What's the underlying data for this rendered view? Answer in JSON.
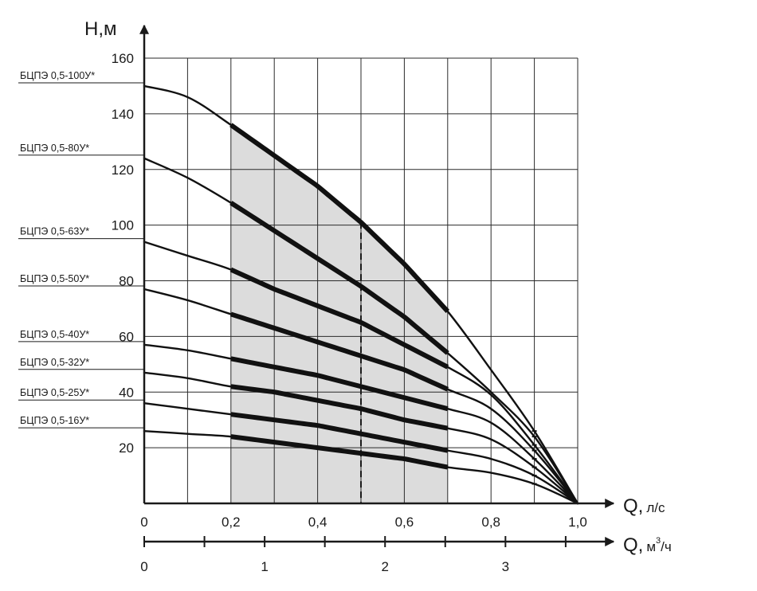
{
  "chart_data": {
    "type": "line",
    "title": "",
    "y_axis": {
      "label": "Н,м",
      "ticks": [
        20,
        40,
        60,
        80,
        100,
        120,
        140,
        160
      ],
      "ylim": [
        0,
        160
      ],
      "gridlines_every": 20
    },
    "x_axis": {
      "label": "Q,",
      "unit": "л/с",
      "ticks": [
        0,
        0.2,
        0.4,
        0.6,
        0.8,
        1.0
      ],
      "tick_labels": [
        "0",
        "0,2",
        "0,4",
        "0,6",
        "0,8",
        "1,0"
      ],
      "xlim": [
        0,
        1.0
      ],
      "gridlines_every": 0.1
    },
    "x_axis_secondary": {
      "label": "Q,",
      "unit_prefix": "м",
      "unit_sup": "3",
      "unit_suffix": "/ч",
      "ticks": [
        0,
        1,
        2,
        3
      ],
      "tick_labels": [
        "0",
        "1",
        "2",
        "3"
      ],
      "minor_ticks": [
        0.5,
        1.5,
        2.5,
        3.5
      ],
      "conversion_from_primary": 3.6
    },
    "grid": true,
    "working_zone": {
      "q_min": 0.2,
      "q_max": 0.7,
      "fill": "#dcdcdc"
    },
    "nominal_flow": {
      "q": 0.5,
      "style": "dashed"
    },
    "series": [
      {
        "name": "БЦПЭ 0,5-100У*",
        "x": [
          0,
          0.1,
          0.2,
          0.3,
          0.4,
          0.5,
          0.6,
          0.7,
          0.8,
          0.9,
          1.0
        ],
        "y": [
          150,
          146,
          136,
          125,
          114,
          101,
          86,
          69,
          48,
          26,
          0
        ]
      },
      {
        "name": "БЦПЭ 0,5-80У*",
        "x": [
          0,
          0.1,
          0.2,
          0.3,
          0.4,
          0.5,
          0.6,
          0.7,
          0.8,
          0.9,
          1.0
        ],
        "y": [
          124,
          117,
          108,
          98,
          88,
          78,
          67,
          54,
          40,
          24,
          0
        ]
      },
      {
        "name": "БЦПЭ 0,5-63У*",
        "x": [
          0,
          0.1,
          0.2,
          0.3,
          0.4,
          0.5,
          0.6,
          0.7,
          0.8,
          0.9,
          1.0
        ],
        "y": [
          94,
          89,
          84,
          77,
          71,
          65,
          57,
          49,
          39,
          21,
          0
        ]
      },
      {
        "name": "БЦПЭ 0,5-50У*",
        "x": [
          0,
          0.1,
          0.2,
          0.3,
          0.4,
          0.5,
          0.6,
          0.7,
          0.8,
          0.9,
          1.0
        ],
        "y": [
          77,
          73,
          68,
          63,
          58,
          53,
          48,
          41,
          34,
          19,
          0
        ]
      },
      {
        "name": "БЦПЭ 0,5-40У*",
        "x": [
          0,
          0.1,
          0.2,
          0.3,
          0.4,
          0.5,
          0.6,
          0.7,
          0.8,
          0.9,
          1.0
        ],
        "y": [
          57,
          55,
          52,
          49,
          46,
          42,
          38,
          34,
          29,
          16,
          0
        ]
      },
      {
        "name": "БЦПЭ 0,5-32У*",
        "x": [
          0,
          0.1,
          0.2,
          0.3,
          0.4,
          0.5,
          0.6,
          0.7,
          0.8,
          0.9,
          1.0
        ],
        "y": [
          47,
          45,
          42,
          40,
          37,
          34,
          30,
          27,
          23,
          13,
          0
        ]
      },
      {
        "name": "БЦПЭ 0,5-25У*",
        "x": [
          0,
          0.1,
          0.2,
          0.3,
          0.4,
          0.5,
          0.6,
          0.7,
          0.8,
          0.9,
          1.0
        ],
        "y": [
          36,
          34,
          32,
          30,
          28,
          25,
          22,
          19,
          16,
          10,
          0
        ]
      },
      {
        "name": "БЦПЭ 0,5-16У*",
        "x": [
          0,
          0.1,
          0.2,
          0.3,
          0.4,
          0.5,
          0.6,
          0.7,
          0.8,
          0.9,
          1.0
        ],
        "y": [
          26,
          25,
          24,
          22,
          20,
          18,
          16,
          13,
          11,
          7,
          0
        ]
      }
    ]
  }
}
